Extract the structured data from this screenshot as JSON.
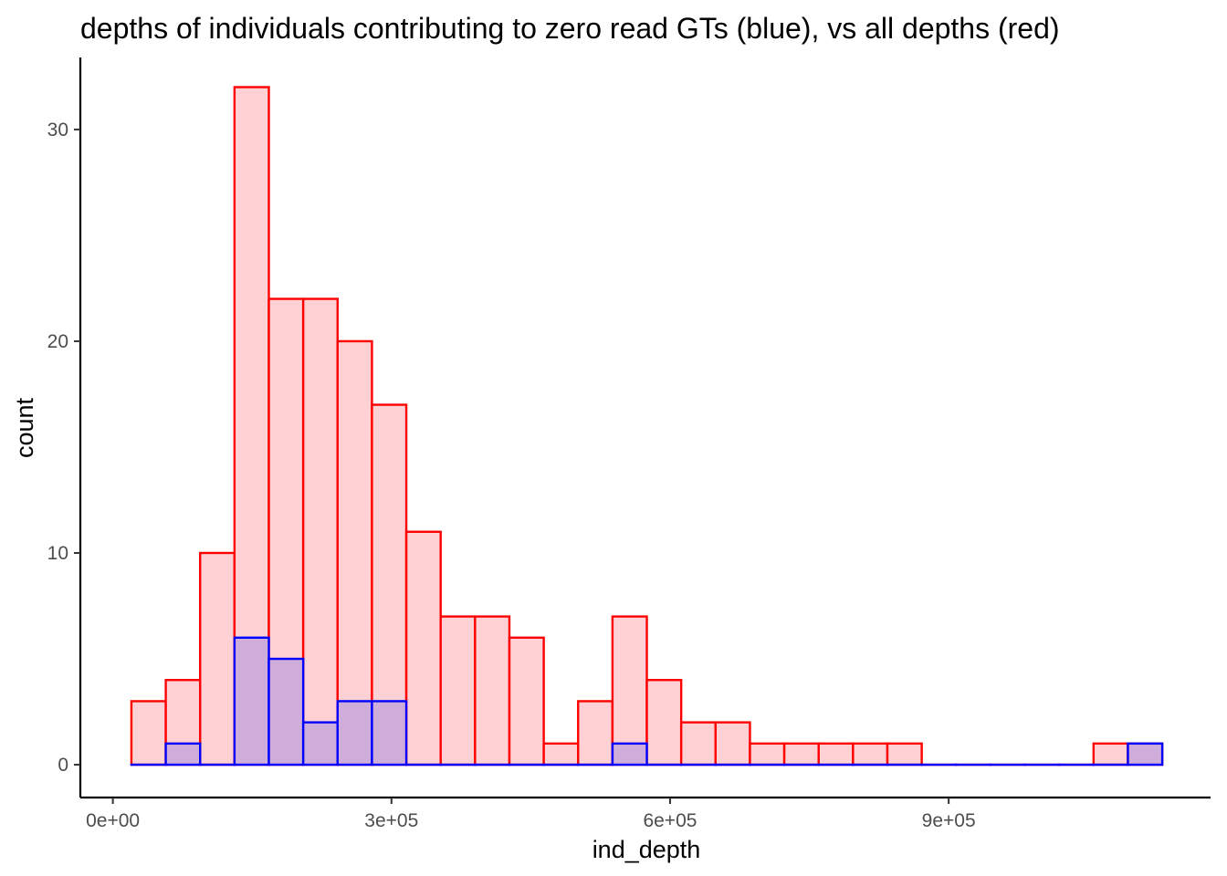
{
  "chart_data": {
    "type": "histogram",
    "title": "depths of individuals contributing to zero read GTs (blue), vs all depths (red)",
    "xlabel": "ind_depth",
    "ylabel": "count",
    "xlim": [
      -35000,
      1182000
    ],
    "ylim": [
      -1.55,
      33.4
    ],
    "x_ticks": [
      {
        "value": 0,
        "label": "0e+00"
      },
      {
        "value": 300000,
        "label": "3e+05"
      },
      {
        "value": 600000,
        "label": "6e+05"
      },
      {
        "value": 900000,
        "label": "9e+05"
      }
    ],
    "y_ticks": [
      {
        "value": 0,
        "label": "0"
      },
      {
        "value": 10,
        "label": "10"
      },
      {
        "value": 20,
        "label": "20"
      },
      {
        "value": 30,
        "label": "30"
      }
    ],
    "bin_edges": [
      20000,
      57000,
      94000,
      131000,
      168000,
      205000,
      242000,
      279000,
      316000,
      353000,
      390000,
      427000,
      464000,
      501000,
      538000,
      575000,
      612000,
      649000,
      686000,
      723000,
      760000,
      797000,
      834000,
      871000,
      908000,
      945000,
      982000,
      1019000,
      1056000,
      1093000,
      1130000
    ],
    "series": [
      {
        "name": "all depths",
        "fill": "#ffcccf",
        "stroke": "#ff0000",
        "values": [
          3,
          4,
          10,
          32,
          22,
          22,
          20,
          17,
          11,
          7,
          7,
          6,
          1,
          3,
          7,
          4,
          2,
          2,
          1,
          1,
          1,
          1,
          1,
          0,
          0,
          0,
          0,
          0,
          1,
          1
        ]
      },
      {
        "name": "zero read GTs",
        "fill": "#c9a8db",
        "stroke": "#0000ff",
        "values": [
          0,
          1,
          0,
          6,
          5,
          2,
          3,
          3,
          0,
          0,
          0,
          0,
          0,
          0,
          1,
          0,
          0,
          0,
          0,
          0,
          0,
          0,
          0,
          0,
          0,
          0,
          0,
          0,
          0,
          1
        ]
      }
    ]
  }
}
